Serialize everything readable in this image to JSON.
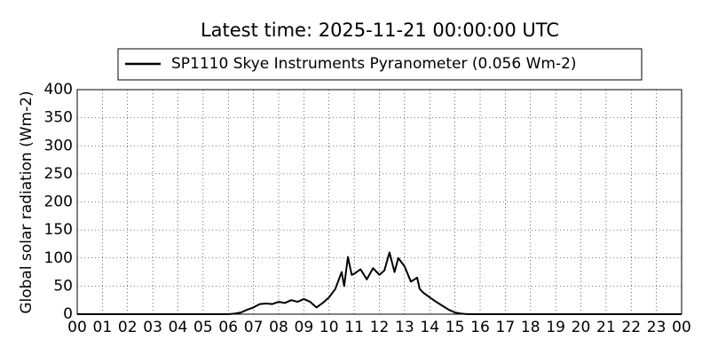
{
  "chart_data": {
    "type": "line",
    "title": "Latest time: 2025-11-21 00:00:00 UTC",
    "ylabel": "Global solar radiation (Wm-2)",
    "x": [
      0,
      6.0,
      6.25,
      6.5,
      6.75,
      7.0,
      7.25,
      7.5,
      7.75,
      8.0,
      8.25,
      8.5,
      8.75,
      9.0,
      9.25,
      9.5,
      9.75,
      10.0,
      10.25,
      10.5,
      10.6,
      10.75,
      10.9,
      11.0,
      11.25,
      11.5,
      11.75,
      12.0,
      12.2,
      12.4,
      12.6,
      12.75,
      13.0,
      13.25,
      13.5,
      13.6,
      13.75,
      14.0,
      14.25,
      14.5,
      14.75,
      15.0,
      15.25,
      15.5,
      24
    ],
    "series": [
      {
        "name": "SP1110 Skye Instruments Pyranometer (0.056 Wm-2)",
        "color": "#000000",
        "values": [
          0,
          0,
          1,
          3,
          8,
          12,
          18,
          19,
          18,
          22,
          20,
          25,
          22,
          27,
          22,
          12,
          20,
          30,
          45,
          75,
          50,
          102,
          70,
          72,
          80,
          62,
          82,
          70,
          78,
          110,
          75,
          100,
          85,
          58,
          65,
          45,
          38,
          30,
          22,
          15,
          8,
          3,
          1,
          0,
          0
        ]
      }
    ],
    "xlim": [
      0,
      24
    ],
    "xticks": [
      {
        "value": 0,
        "label": "00"
      },
      {
        "value": 1,
        "label": "01"
      },
      {
        "value": 2,
        "label": "02"
      },
      {
        "value": 3,
        "label": "03"
      },
      {
        "value": 4,
        "label": "04"
      },
      {
        "value": 5,
        "label": "05"
      },
      {
        "value": 6,
        "label": "06"
      },
      {
        "value": 7,
        "label": "07"
      },
      {
        "value": 8,
        "label": "08"
      },
      {
        "value": 9,
        "label": "09"
      },
      10,
      11,
      12,
      13,
      14,
      15,
      16,
      17,
      18,
      19,
      20,
      21,
      22,
      23,
      {
        "value": 24,
        "label": "00"
      }
    ],
    "ylim": [
      0,
      400
    ],
    "yticks": [
      0,
      50,
      100,
      150,
      200,
      250,
      300,
      350,
      400
    ],
    "grid": true
  }
}
